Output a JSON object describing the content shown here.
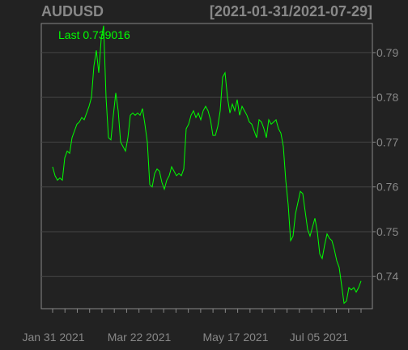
{
  "chart_data": {
    "type": "line",
    "title": "AUDUSD",
    "date_range_label": "[2021-01-31/2021-07-29]",
    "last_label": "Last 0.739016",
    "y_ticks": [
      "0.74",
      "0.75",
      "0.76",
      "0.77",
      "0.78",
      "0.79"
    ],
    "ylim": [
      0.7328,
      0.7965
    ],
    "x_tick_labels": [
      "Jan 31 2021",
      "Mar 22 2021",
      "May 17 2021",
      "Jul 05 2021"
    ],
    "grid": true,
    "colors": {
      "background": "#222222",
      "panel": "#222222",
      "grid": "#444444",
      "axis": "#888888",
      "text": "#888888",
      "line": "#00ff00"
    },
    "series": [
      {
        "values": [
          0.7645,
          0.7625,
          0.7615,
          0.762,
          0.7615,
          0.7665,
          0.768,
          0.7675,
          0.771,
          0.7725,
          0.774,
          0.7745,
          0.7755,
          0.775,
          0.7765,
          0.778,
          0.78,
          0.787,
          0.7905,
          0.7855,
          0.793,
          0.796,
          0.78,
          0.771,
          0.7705,
          0.776,
          0.781,
          0.777,
          0.77,
          0.769,
          0.768,
          0.771,
          0.776,
          0.7765,
          0.776,
          0.7765,
          0.776,
          0.7775,
          0.774,
          0.77,
          0.7605,
          0.76,
          0.763,
          0.764,
          0.7635,
          0.761,
          0.7595,
          0.7615,
          0.7625,
          0.7645,
          0.7635,
          0.7625,
          0.763,
          0.7625,
          0.764,
          0.773,
          0.774,
          0.776,
          0.777,
          0.7755,
          0.7765,
          0.775,
          0.777,
          0.778,
          0.777,
          0.775,
          0.7715,
          0.7715,
          0.7735,
          0.777,
          0.7845,
          0.7855,
          0.78,
          0.7765,
          0.7785,
          0.777,
          0.7795,
          0.776,
          0.778,
          0.777,
          0.776,
          0.7745,
          0.774,
          0.7725,
          0.771,
          0.775,
          0.7745,
          0.773,
          0.771,
          0.775,
          0.774,
          0.7745,
          0.775,
          0.773,
          0.772,
          0.769,
          0.7615,
          0.756,
          0.748,
          0.749,
          0.754,
          0.7565,
          0.759,
          0.7585,
          0.7545,
          0.7505,
          0.749,
          0.751,
          0.753,
          0.75,
          0.745,
          0.744,
          0.747,
          0.7495,
          0.7485,
          0.748,
          0.746,
          0.7435,
          0.742,
          0.738,
          0.734,
          0.7345,
          0.7375,
          0.737,
          0.7375,
          0.7365,
          0.7375,
          0.739
        ]
      }
    ]
  }
}
